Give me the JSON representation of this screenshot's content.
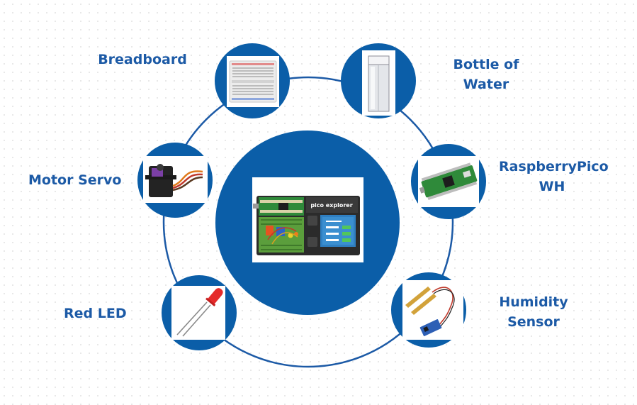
{
  "center": {
    "board_text": "pico explorer"
  },
  "components": [
    {
      "id": "breadboard",
      "lines": [
        "Breadboard"
      ]
    },
    {
      "id": "bottle",
      "lines": [
        "Bottle of",
        "Water"
      ]
    },
    {
      "id": "pico",
      "lines": [
        "RaspberryPico",
        "WH"
      ]
    },
    {
      "id": "servo",
      "lines": [
        "Motor Servo"
      ]
    },
    {
      "id": "humidity",
      "lines": [
        "Humidity",
        "Sensor"
      ]
    },
    {
      "id": "led",
      "lines": [
        "Red LED"
      ]
    }
  ],
  "colors": {
    "ring": "#1c5aa6",
    "circle": "#0b5ea8",
    "label": "#1c5aa6"
  }
}
